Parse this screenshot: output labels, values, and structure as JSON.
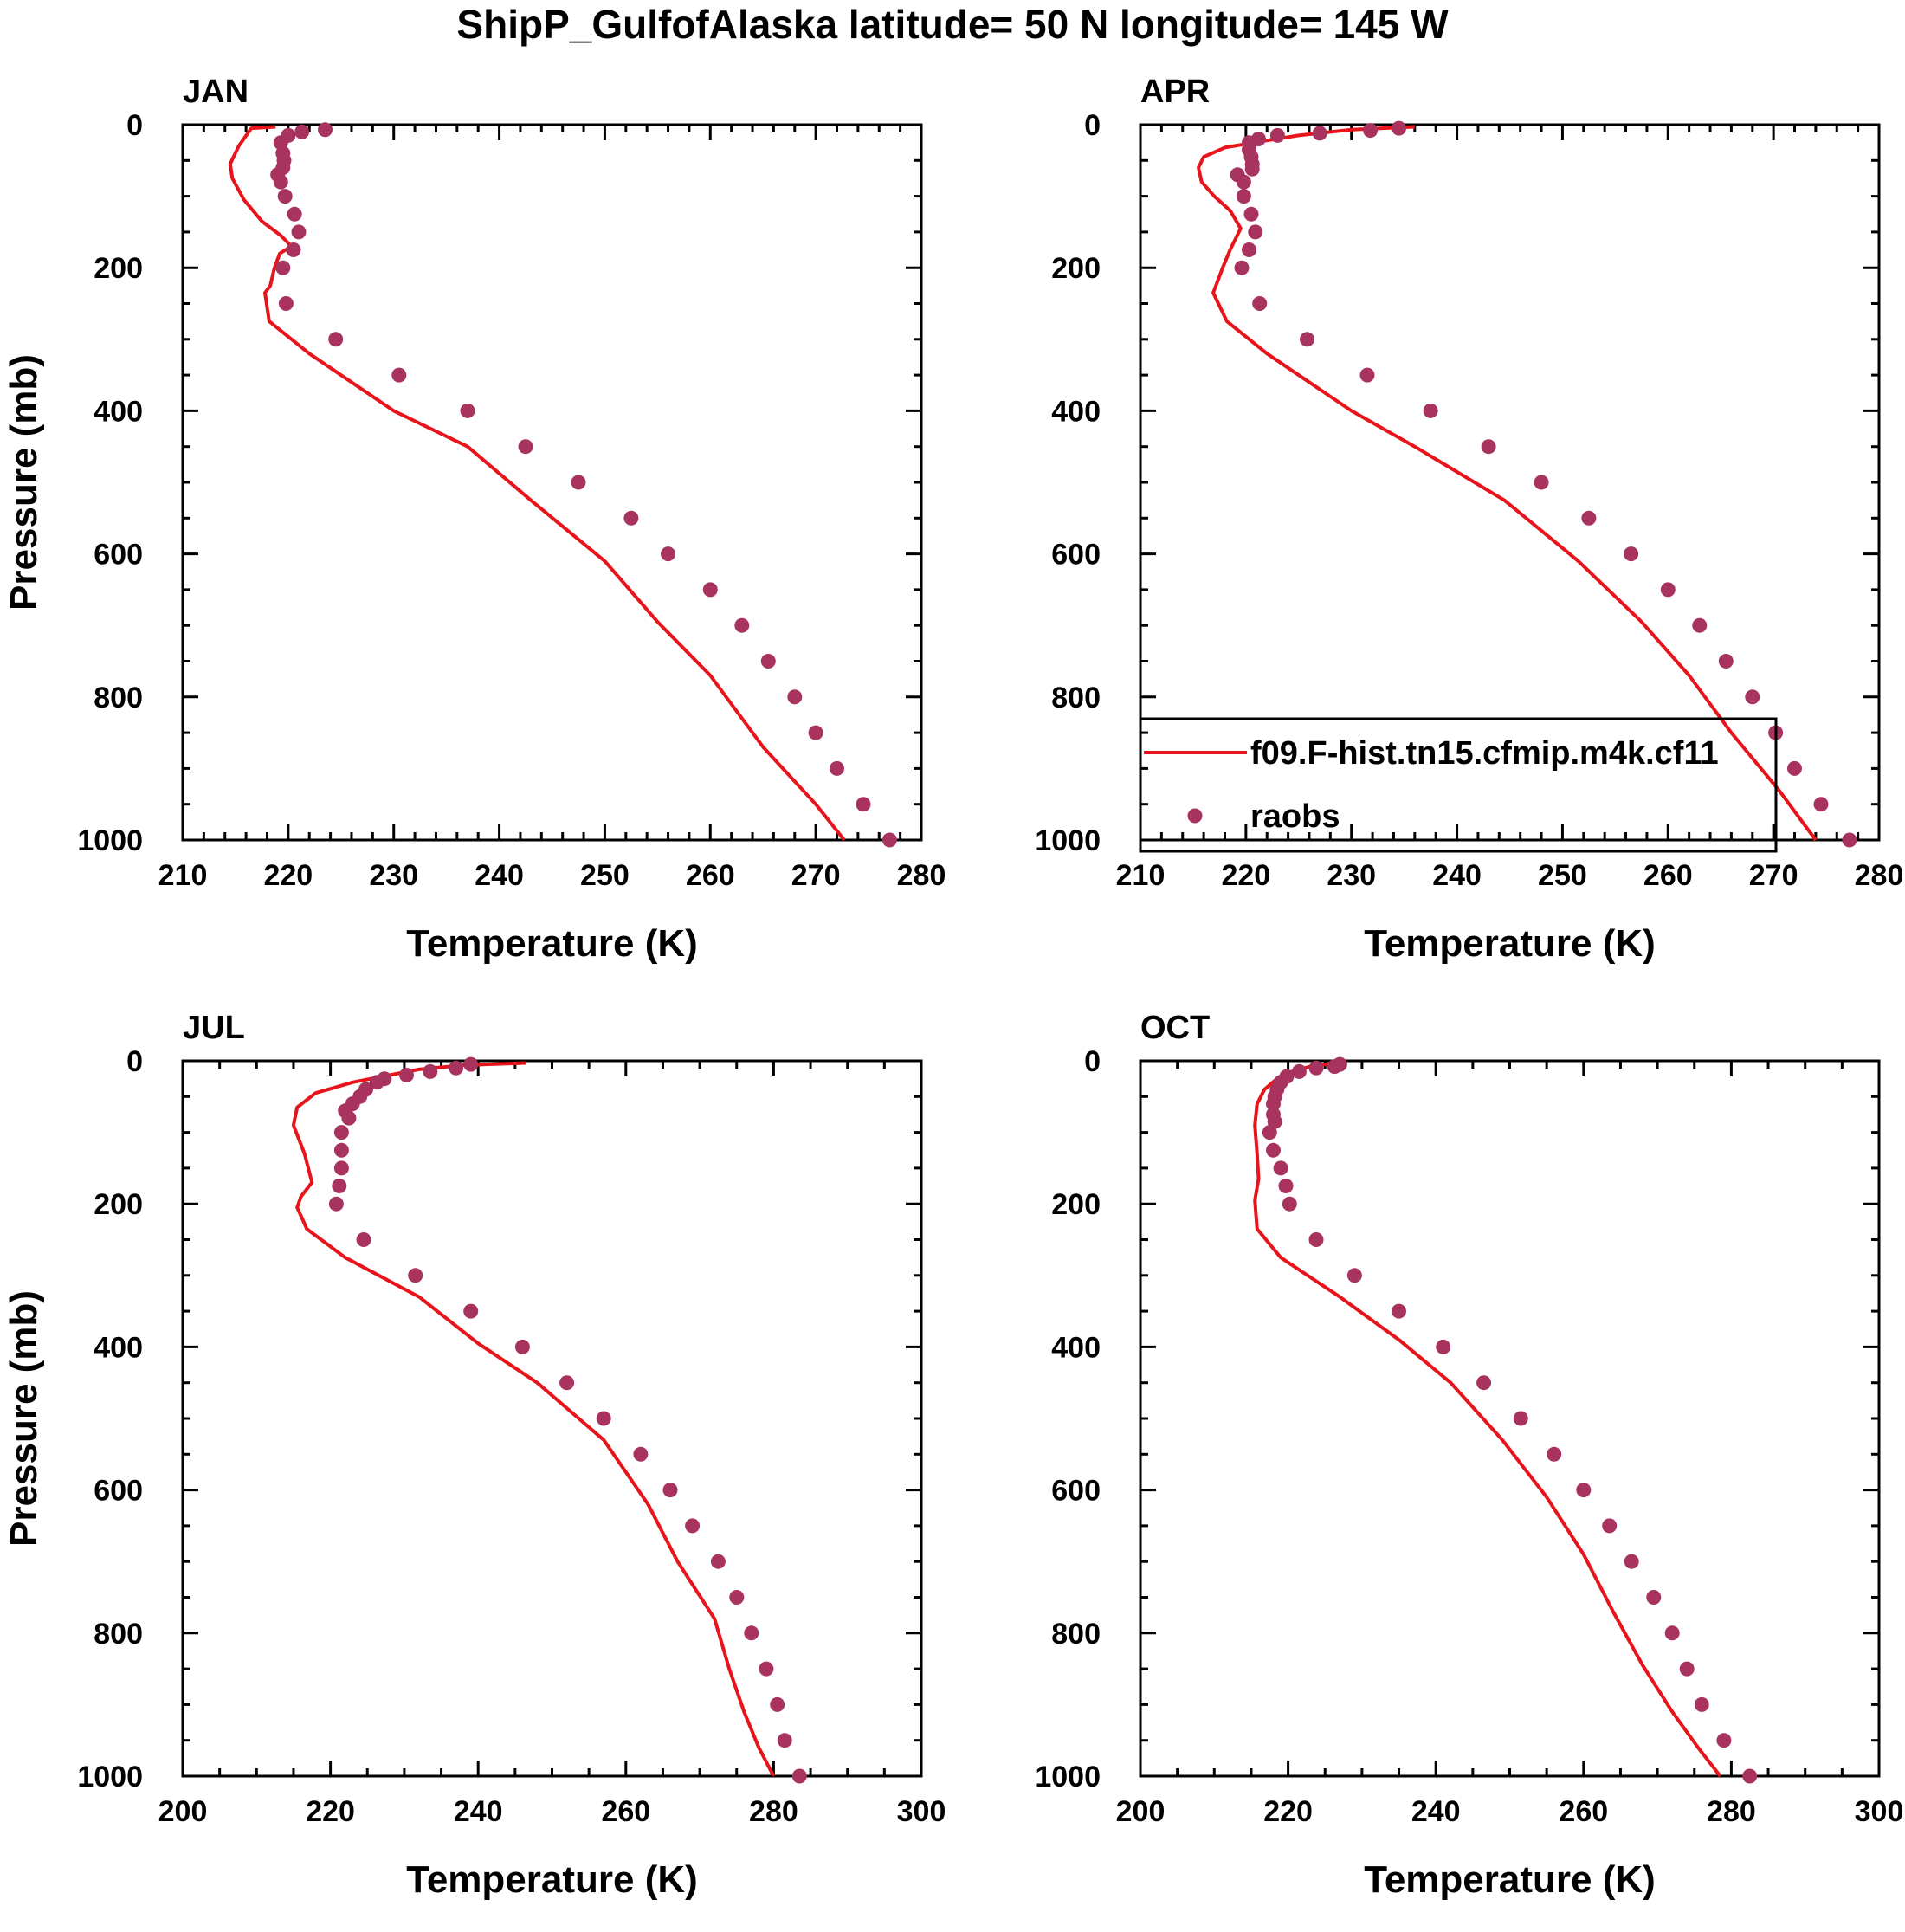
{
  "figure": {
    "title": "ShipP_GulfofAlaska  latitude= 50 N longitude= 145 W"
  },
  "legend": {
    "model_label": "f09.F-hist.tn15.cfmip.m4k.cf11",
    "obs_label": "raobs",
    "panel": "APR",
    "placement": "lower-left"
  },
  "colors": {
    "model": "#e8141c",
    "obs": "#a8335f",
    "axes": "#000000"
  },
  "chart_data": [
    {
      "type": "line",
      "title": "JAN",
      "xlabel": "Temperature (K)",
      "ylabel": "Pressure (mb)",
      "xlim": [
        210,
        280
      ],
      "ylim": [
        0,
        1000
      ],
      "x_ticks": [
        210,
        220,
        230,
        240,
        250,
        260,
        270,
        280
      ],
      "y_ticks": [
        0,
        200,
        400,
        600,
        800,
        1000
      ],
      "series": [
        {
          "name": "f09.F-hist.tn15.cfmip.m4k.cf11",
          "style": "line",
          "points": [
            [
              218.8,
              3
            ],
            [
              216.5,
              5
            ],
            [
              215.3,
              30
            ],
            [
              214.5,
              55
            ],
            [
              214.7,
              75
            ],
            [
              215.8,
              105
            ],
            [
              217.5,
              135
            ],
            [
              219.3,
              155
            ],
            [
              220.3,
              170
            ],
            [
              219.2,
              180
            ],
            [
              218.7,
              200
            ],
            [
              218.3,
              225
            ],
            [
              217.8,
              235
            ],
            [
              218.2,
              275
            ],
            [
              222,
              320
            ],
            [
              230,
              400
            ],
            [
              237,
              450
            ],
            [
              243,
              525
            ],
            [
              250,
              610
            ],
            [
              255,
              695
            ],
            [
              260,
              770
            ],
            [
              265,
              870
            ],
            [
              270,
              950
            ],
            [
              272.7,
              1000
            ]
          ]
        },
        {
          "name": "raobs",
          "style": "markers",
          "points": [
            [
              223.5,
              7
            ],
            [
              221.3,
              10
            ],
            [
              220,
              15
            ],
            [
              219.3,
              25
            ],
            [
              219.5,
              40
            ],
            [
              219.6,
              50
            ],
            [
              219.5,
              60
            ],
            [
              219,
              70
            ],
            [
              219.3,
              80
            ],
            [
              219.7,
              100
            ],
            [
              220.6,
              125
            ],
            [
              221,
              150
            ],
            [
              220.5,
              175
            ],
            [
              219.5,
              200
            ],
            [
              219.8,
              250
            ],
            [
              224.5,
              300
            ],
            [
              230.5,
              350
            ],
            [
              237,
              400
            ],
            [
              242.5,
              450
            ],
            [
              247.5,
              500
            ],
            [
              252.5,
              550
            ],
            [
              256,
              600
            ],
            [
              260,
              650
            ],
            [
              263,
              700
            ],
            [
              265.5,
              750
            ],
            [
              268,
              800
            ],
            [
              270,
              850
            ],
            [
              272,
              900
            ],
            [
              274.5,
              950
            ],
            [
              277,
              1000
            ]
          ]
        }
      ]
    },
    {
      "type": "line",
      "title": "APR",
      "xlabel": "Temperature (K)",
      "ylabel": "",
      "xlim": [
        210,
        280
      ],
      "ylim": [
        0,
        1000
      ],
      "x_ticks": [
        210,
        220,
        230,
        240,
        250,
        260,
        270,
        280
      ],
      "y_ticks": [
        0,
        200,
        400,
        600,
        800,
        1000
      ],
      "series": [
        {
          "name": "f09.F-hist.tn15.cfmip.m4k.cf11",
          "style": "line",
          "points": [
            [
              236,
              3
            ],
            [
              230,
              7
            ],
            [
              225,
              15
            ],
            [
              222,
              22
            ],
            [
              218,
              32
            ],
            [
              216,
              45
            ],
            [
              215.5,
              60
            ],
            [
              215.8,
              80
            ],
            [
              217,
              100
            ],
            [
              218.5,
              120
            ],
            [
              219.5,
              145
            ],
            [
              218.5,
              175
            ],
            [
              217.8,
              200
            ],
            [
              216.9,
              235
            ],
            [
              218.2,
              275
            ],
            [
              222,
              320
            ],
            [
              230,
              400
            ],
            [
              236,
              450
            ],
            [
              244.5,
              525
            ],
            [
              251.5,
              610
            ],
            [
              257.5,
              695
            ],
            [
              262,
              770
            ],
            [
              266,
              850
            ],
            [
              270.5,
              930
            ],
            [
              274,
              1000
            ]
          ]
        },
        {
          "name": "raobs",
          "style": "markers",
          "points": [
            [
              234.5,
              5
            ],
            [
              231.8,
              8
            ],
            [
              227,
              12
            ],
            [
              223,
              15
            ],
            [
              221.2,
              20
            ],
            [
              220.3,
              25
            ],
            [
              220.3,
              35
            ],
            [
              220.5,
              45
            ],
            [
              220.6,
              55
            ],
            [
              220.6,
              62
            ],
            [
              219.2,
              70
            ],
            [
              219.8,
              80
            ],
            [
              219.8,
              100
            ],
            [
              220.5,
              125
            ],
            [
              220.9,
              150
            ],
            [
              220.3,
              175
            ],
            [
              219.6,
              200
            ],
            [
              221.3,
              250
            ],
            [
              225.8,
              300
            ],
            [
              231.5,
              350
            ],
            [
              237.5,
              400
            ],
            [
              243,
              450
            ],
            [
              248,
              500
            ],
            [
              252.5,
              550
            ],
            [
              256.5,
              600
            ],
            [
              260,
              650
            ],
            [
              263,
              700
            ],
            [
              265.5,
              750
            ],
            [
              268,
              800
            ],
            [
              270.2,
              850
            ],
            [
              272,
              900
            ],
            [
              274.5,
              950
            ],
            [
              277.2,
              1000
            ]
          ]
        }
      ]
    },
    {
      "type": "line",
      "title": "JUL",
      "xlabel": "Temperature (K)",
      "ylabel": "Pressure (mb)",
      "xlim": [
        200,
        300
      ],
      "ylim": [
        0,
        1000
      ],
      "x_ticks": [
        200,
        220,
        240,
        260,
        280,
        300
      ],
      "y_ticks": [
        0,
        200,
        400,
        600,
        800,
        1000
      ],
      "series": [
        {
          "name": "f09.F-hist.tn15.cfmip.m4k.cf11",
          "style": "line",
          "points": [
            [
              246.5,
              3
            ],
            [
              238,
              6
            ],
            [
              232,
              12
            ],
            [
              228,
              20
            ],
            [
              223,
              30
            ],
            [
              218,
              45
            ],
            [
              215.5,
              65
            ],
            [
              215,
              90
            ],
            [
              216.5,
              130
            ],
            [
              217.5,
              170
            ],
            [
              216,
              190
            ],
            [
              215.5,
              205
            ],
            [
              216.8,
              235
            ],
            [
              222,
              275
            ],
            [
              232,
              330
            ],
            [
              240,
              395
            ],
            [
              248,
              450
            ],
            [
              257,
              530
            ],
            [
              263,
              620
            ],
            [
              267,
              700
            ],
            [
              272,
              780
            ],
            [
              274,
              850
            ],
            [
              276,
              910
            ],
            [
              278,
              960
            ],
            [
              280,
              1000
            ]
          ]
        },
        {
          "name": "raobs",
          "style": "markers",
          "points": [
            [
              239,
              5
            ],
            [
              237,
              10
            ],
            [
              233.5,
              15
            ],
            [
              230.3,
              20
            ],
            [
              227.3,
              25
            ],
            [
              226.3,
              30
            ],
            [
              224.8,
              40
            ],
            [
              224,
              50
            ],
            [
              223,
              60
            ],
            [
              222,
              70
            ],
            [
              222.5,
              80
            ],
            [
              221.5,
              100
            ],
            [
              221.5,
              125
            ],
            [
              221.5,
              150
            ],
            [
              221.2,
              175
            ],
            [
              220.8,
              200
            ],
            [
              224.5,
              250
            ],
            [
              231.5,
              300
            ],
            [
              239,
              350
            ],
            [
              246,
              400
            ],
            [
              252,
              450
            ],
            [
              257,
              500
            ],
            [
              262,
              550
            ],
            [
              266,
              600
            ],
            [
              269,
              650
            ],
            [
              272.5,
              700
            ],
            [
              275,
              750
            ],
            [
              277,
              800
            ],
            [
              279,
              850
            ],
            [
              280.5,
              900
            ],
            [
              281.5,
              950
            ],
            [
              283.5,
              1000
            ]
          ]
        }
      ]
    },
    {
      "type": "line",
      "title": "OCT",
      "xlabel": "Temperature (K)",
      "ylabel": "",
      "xlim": [
        200,
        300
      ],
      "ylim": [
        0,
        1000
      ],
      "x_ticks": [
        200,
        220,
        240,
        260,
        280,
        300
      ],
      "y_ticks": [
        0,
        200,
        400,
        600,
        800,
        1000
      ],
      "series": [
        {
          "name": "f09.F-hist.tn15.cfmip.m4k.cf11",
          "style": "line",
          "points": [
            [
              226.5,
              3
            ],
            [
              223,
              8
            ],
            [
              220.5,
              15
            ],
            [
              218.5,
              25
            ],
            [
              216.8,
              40
            ],
            [
              215.8,
              60
            ],
            [
              215.5,
              90
            ],
            [
              215.8,
              130
            ],
            [
              216,
              165
            ],
            [
              215.5,
              195
            ],
            [
              215.8,
              235
            ],
            [
              219,
              275
            ],
            [
              227,
              330
            ],
            [
              235,
              390
            ],
            [
              242,
              450
            ],
            [
              249,
              530
            ],
            [
              255,
              610
            ],
            [
              260,
              690
            ],
            [
              264,
              770
            ],
            [
              268,
              845
            ],
            [
              272,
              910
            ],
            [
              275.5,
              960
            ],
            [
              278.5,
              1000
            ]
          ]
        },
        {
          "name": "raobs",
          "style": "markers",
          "points": [
            [
              227,
              5
            ],
            [
              226.3,
              8
            ],
            [
              223.8,
              10
            ],
            [
              221.5,
              15
            ],
            [
              219.8,
              22
            ],
            [
              219,
              30
            ],
            [
              218.5,
              40
            ],
            [
              218.2,
              50
            ],
            [
              218,
              60
            ],
            [
              218,
              75
            ],
            [
              218.2,
              85
            ],
            [
              217.5,
              100
            ],
            [
              218,
              125
            ],
            [
              219,
              150
            ],
            [
              219.7,
              175
            ],
            [
              220.2,
              200
            ],
            [
              223.8,
              250
            ],
            [
              229,
              300
            ],
            [
              235,
              350
            ],
            [
              241,
              400
            ],
            [
              246.5,
              450
            ],
            [
              251.5,
              500
            ],
            [
              256,
              550
            ],
            [
              260,
              600
            ],
            [
              263.5,
              650
            ],
            [
              266.5,
              700
            ],
            [
              269.5,
              750
            ],
            [
              272,
              800
            ],
            [
              274,
              850
            ],
            [
              276,
              900
            ],
            [
              279,
              950
            ],
            [
              282.5,
              1000
            ]
          ]
        }
      ]
    }
  ]
}
